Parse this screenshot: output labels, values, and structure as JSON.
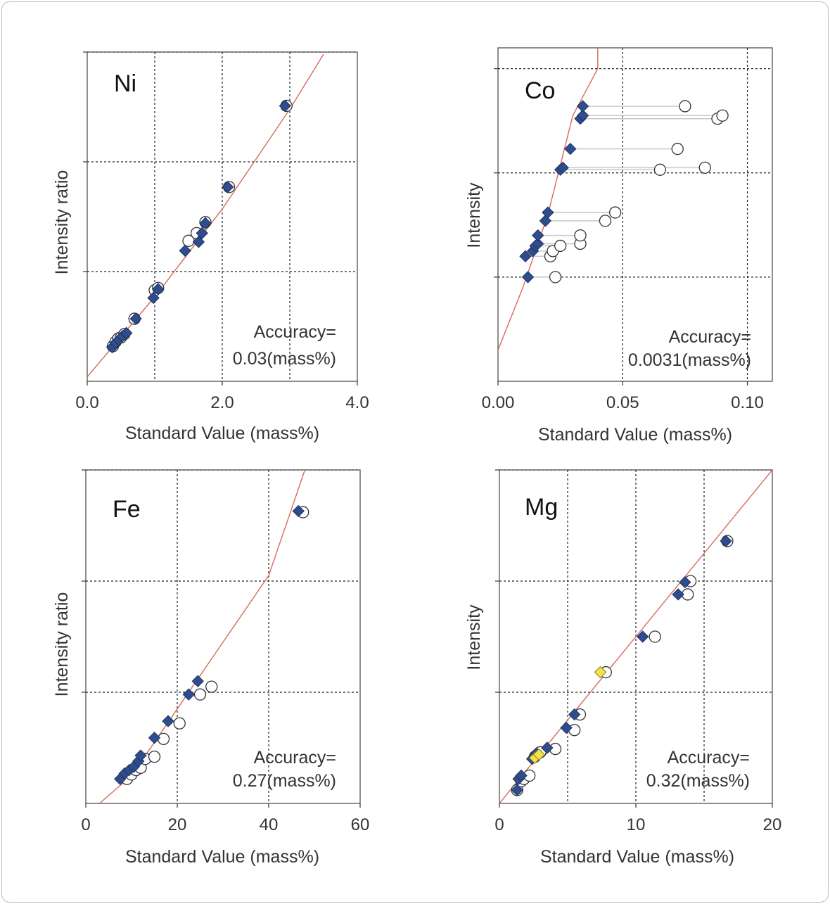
{
  "colors": {
    "fit_line": "#d9695c",
    "after_marker": "#2f4d8c",
    "after_marker_alt": "#f3e34a",
    "before_marker_fill": "#ffffff",
    "before_marker_stroke": "#333333",
    "connector": "#c8c8c8",
    "grid": "#222222"
  },
  "chart_data": [
    {
      "type": "scatter",
      "element": "Ni",
      "xlabel": "Standard Value (mass%)",
      "ylabel": "Intensity ratio",
      "accuracy_line1": "Accuracy=",
      "accuracy_line2": "0.03(mass%)",
      "xlim": [
        0,
        4
      ],
      "ylim": [
        0,
        3
      ],
      "x_ticks": [
        "0.0",
        "2.0",
        "4.0"
      ],
      "x_tick_values": [
        0,
        2,
        4
      ],
      "x_grid": [
        1,
        2,
        3
      ],
      "y_grid": [
        1,
        2,
        3
      ],
      "fit_curve": [
        [
          0,
          0.04
        ],
        [
          1,
          0.77
        ],
        [
          2,
          1.57
        ],
        [
          3,
          2.48
        ],
        [
          3.5,
          2.98
        ]
      ],
      "series": [
        {
          "marker": "circle-open",
          "x": [
            0.38,
            0.42,
            0.46,
            0.5,
            0.55,
            0.7,
            1.0,
            1.05,
            1.5,
            1.62,
            1.75,
            2.1,
            2.95
          ],
          "y": [
            0.32,
            0.36,
            0.39,
            0.4,
            0.43,
            0.57,
            0.83,
            0.85,
            1.28,
            1.35,
            1.45,
            1.77,
            2.51
          ]
        },
        {
          "marker": "diamond",
          "x": [
            0.37,
            0.42,
            0.47,
            0.52,
            0.58,
            0.72,
            0.98,
            1.05,
            1.45,
            1.65,
            1.7,
            1.75,
            2.08,
            2.93
          ],
          "y": [
            0.31,
            0.35,
            0.38,
            0.41,
            0.44,
            0.57,
            0.76,
            0.84,
            1.19,
            1.27,
            1.35,
            1.44,
            1.77,
            2.51
          ]
        }
      ]
    },
    {
      "type": "scatter",
      "element": "Co",
      "xlabel": "Standard Value (mass%)",
      "ylabel": "Intensity",
      "accuracy_line1": "Accuracy=",
      "accuracy_line2": "0.0031(mass%)",
      "xlim": [
        0,
        0.11
      ],
      "ylim": [
        0,
        3.2
      ],
      "x_ticks": [
        "0.00",
        "0.05",
        "0.10"
      ],
      "x_tick_values": [
        0,
        0.05,
        0.1
      ],
      "x_grid": [
        0.05,
        0.1
      ],
      "y_grid": [
        1,
        2,
        3
      ],
      "fit_curve": [
        [
          0,
          0.3
        ],
        [
          0.01,
          0.9
        ],
        [
          0.02,
          1.6
        ],
        [
          0.03,
          2.55
        ],
        [
          0.04,
          3.0
        ],
        [
          0.04,
          3.2
        ]
      ],
      "pairs": [
        {
          "after": 0.012,
          "before": 0.023,
          "y": 1.0
        },
        {
          "after": 0.011,
          "before": 0.021,
          "y": 1.2
        },
        {
          "after": 0.014,
          "before": 0.022,
          "y": 1.25
        },
        {
          "after": 0.015,
          "before": 0.025,
          "y": 1.3
        },
        {
          "after": 0.016,
          "before": 0.033,
          "y": 1.32
        },
        {
          "after": 0.016,
          "before": 0.033,
          "y": 1.4
        },
        {
          "after": 0.019,
          "before": 0.043,
          "y": 1.54
        },
        {
          "after": 0.02,
          "before": 0.047,
          "y": 1.62
        },
        {
          "after": 0.025,
          "before": 0.065,
          "y": 2.03
        },
        {
          "after": 0.026,
          "before": 0.083,
          "y": 2.05
        },
        {
          "after": 0.029,
          "before": 0.072,
          "y": 2.23
        },
        {
          "after": 0.033,
          "before": 0.088,
          "y": 2.52
        },
        {
          "after": 0.034,
          "before": 0.09,
          "y": 2.55
        },
        {
          "after": 0.034,
          "before": 0.075,
          "y": 2.64
        }
      ]
    },
    {
      "type": "scatter",
      "element": "Fe",
      "xlabel": "Standard Value (mass%)",
      "ylabel": "Intensity ratio",
      "accuracy_line1": "Accuracy=",
      "accuracy_line2": "0.27(mass%)",
      "xlim": [
        0,
        60
      ],
      "ylim": [
        0,
        3
      ],
      "x_ticks": [
        "0",
        "20",
        "40",
        "60"
      ],
      "x_tick_values": [
        0,
        20,
        40,
        60
      ],
      "x_grid": [
        20,
        40
      ],
      "y_grid": [
        1,
        2,
        3
      ],
      "fit_curve": [
        [
          3,
          0.0
        ],
        [
          10,
          0.25
        ],
        [
          20,
          0.85
        ],
        [
          30,
          1.45
        ],
        [
          40,
          2.05
        ],
        [
          50,
          3.25
        ]
      ],
      "series": [
        {
          "marker": "circle-open",
          "x": [
            9,
            10,
            11,
            12,
            13,
            15,
            17,
            20.5,
            25,
            27.5,
            47.5
          ],
          "y": [
            0.22,
            0.26,
            0.3,
            0.32,
            0.4,
            0.42,
            0.58,
            0.72,
            0.98,
            1.05,
            2.62
          ]
        },
        {
          "marker": "diamond",
          "x": [
            7.5,
            8.5,
            9.5,
            10.5,
            11.5,
            12,
            15,
            18,
            22.5,
            24.5,
            46.5
          ],
          "y": [
            0.22,
            0.27,
            0.3,
            0.33,
            0.38,
            0.43,
            0.59,
            0.74,
            0.98,
            1.1,
            2.63
          ]
        }
      ]
    },
    {
      "type": "scatter",
      "element": "Mg",
      "xlabel": "Standard Value (mass%)",
      "ylabel": "Intensity",
      "accuracy_line1": "Accuracy=",
      "accuracy_line2": "0.32(mass%)",
      "xlim": [
        0,
        20
      ],
      "ylim": [
        0,
        3
      ],
      "x_ticks": [
        "0",
        "10",
        "20"
      ],
      "x_tick_values": [
        0,
        10,
        20
      ],
      "x_grid": [
        5,
        10,
        15
      ],
      "y_grid": [
        1,
        2,
        3
      ],
      "fit_curve": [
        [
          0,
          0.0
        ],
        [
          20,
          3.0
        ]
      ],
      "series": [
        {
          "marker": "circle-open",
          "x": [
            1.3,
            1.6,
            1.8,
            2.2,
            2.6,
            3.0,
            4.1,
            5.5,
            5.9,
            7.8,
            11.4,
            13.8,
            14.0,
            16.7
          ],
          "y": [
            0.12,
            0.2,
            0.22,
            0.25,
            0.42,
            0.46,
            0.49,
            0.66,
            0.8,
            1.18,
            1.5,
            1.88,
            2.0,
            2.36
          ]
        },
        {
          "marker": "diamond",
          "x": [
            1.3,
            1.4,
            1.6,
            2.4,
            2.7,
            3.5,
            4.9,
            5.5,
            10.5,
            13.1,
            13.6,
            16.6
          ],
          "y": [
            0.12,
            0.22,
            0.25,
            0.4,
            0.45,
            0.5,
            0.68,
            0.8,
            1.5,
            1.88,
            1.99,
            2.36
          ]
        },
        {
          "marker": "diamond-yellow",
          "x": [
            2.6,
            2.9,
            7.4
          ],
          "y": [
            0.41,
            0.44,
            1.18
          ]
        }
      ]
    }
  ]
}
